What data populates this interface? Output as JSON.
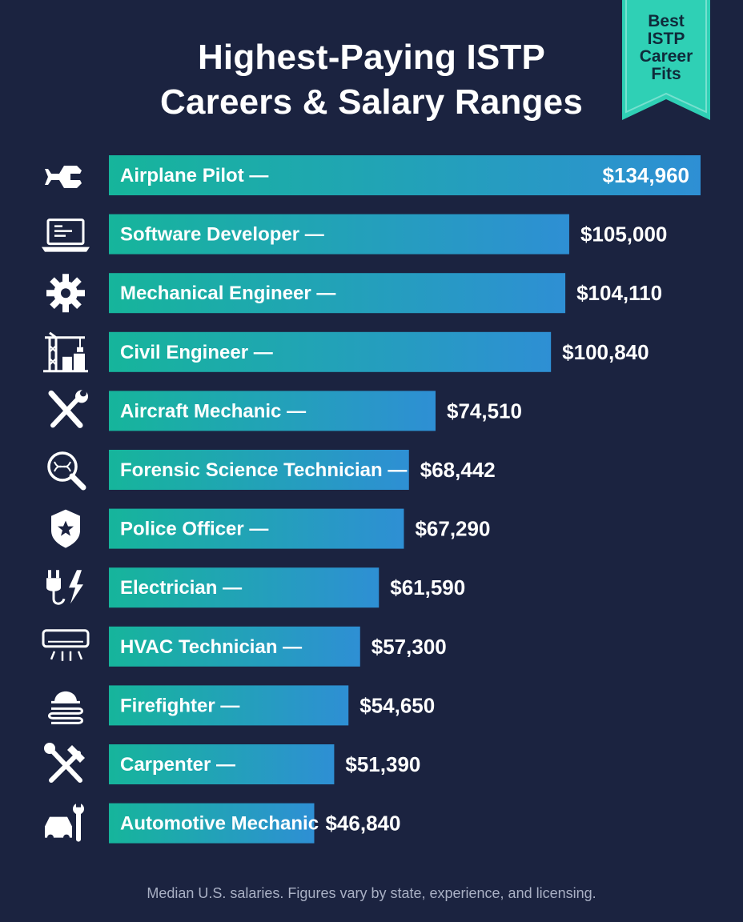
{
  "chart_data": {
    "type": "bar",
    "orientation": "horizontal",
    "title": "Highest-Paying ISTP Careers & Salary Ranges",
    "title_lines": [
      "Highest-Paying ISTP",
      "Careers & Salary Ranges"
    ],
    "categories": [
      "Airplane Pilot —",
      "Software Developer —",
      "Mechanical Engineer —",
      "Civil Engineer —",
      "Aircraft Mechanic —",
      "Forensic Science Technician —",
      "Police Officer —",
      "Electrician —",
      "HVAC Technician —",
      "Firefighter —",
      "Carpenter —",
      "Automotive Mechanic"
    ],
    "values": [
      134960,
      105000,
      104110,
      100840,
      74510,
      68442,
      67290,
      61590,
      57300,
      54650,
      51390,
      46840
    ],
    "value_labels": [
      "$134,960",
      "$105,000",
      "$104,110",
      "$100,840",
      "$74,510",
      "$68,442",
      "$67,290",
      "$61,590",
      "$57,300",
      "$54,650",
      "$51,390",
      "$46,840"
    ],
    "icons": [
      "airplane-icon",
      "laptop-code-icon",
      "gear-icon",
      "construction-crane-icon",
      "wrench-screwdriver-icon",
      "dna-magnifier-icon",
      "police-badge-icon",
      "electric-plug-icon",
      "air-conditioner-icon",
      "firefighter-helmet-hose-icon",
      "hammer-wrench-icon",
      "car-wrench-icon"
    ],
    "xlim": [
      0,
      134960
    ],
    "grid": false,
    "legend": "none",
    "colors": {
      "bar_start": "#16b59b",
      "bar_end": "#2e8fd4",
      "background": "#1b2340"
    }
  },
  "ribbon": {
    "lines": [
      "Best",
      "ISTP",
      "Career",
      "Fits"
    ],
    "color": "#2fd0b5"
  },
  "footnote": "Median U.S. salaries. Figures vary by state, experience, and licensing."
}
